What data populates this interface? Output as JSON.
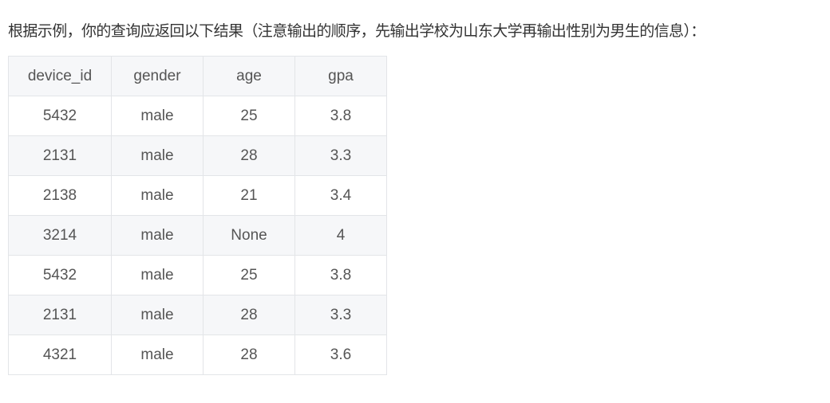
{
  "intro_text": "根据示例，你的查询应返回以下结果（注意输出的顺序，先输出学校为山东大学再输出性别为男生的信息）：",
  "table": {
    "headers": [
      "device_id",
      "gender",
      "age",
      "gpa"
    ],
    "rows": [
      [
        "5432",
        "male",
        "25",
        "3.8"
      ],
      [
        "2131",
        "male",
        "28",
        "3.3"
      ],
      [
        "2138",
        "male",
        "21",
        "3.4"
      ],
      [
        "3214",
        "male",
        "None",
        "4"
      ],
      [
        "5432",
        "male",
        "25",
        "3.8"
      ],
      [
        "2131",
        "male",
        "28",
        "3.3"
      ],
      [
        "4321",
        "male",
        "28",
        "3.6"
      ]
    ]
  }
}
